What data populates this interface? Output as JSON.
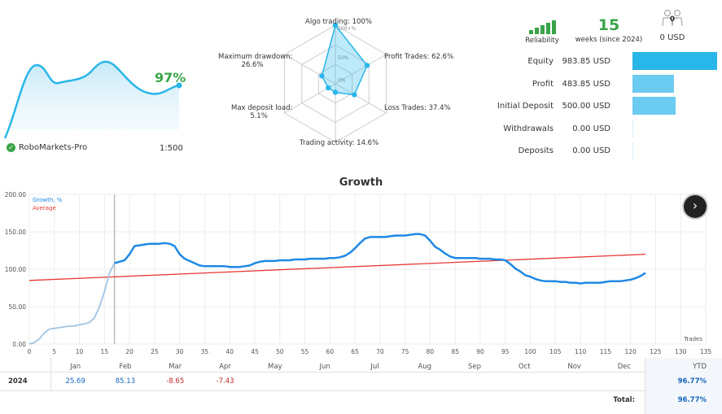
{
  "account": {
    "growth_pct": "97%",
    "broker": "RoboMarkets-Pro",
    "leverage": "1:500"
  },
  "radar": {
    "labels": {
      "algo": "Algo trading: 100%",
      "profit_trades": "Profit Trades: 62.6%",
      "loss_trades": "Loss Trades: 37.4%",
      "activity": "Trading activity: 14.6%",
      "deposit_load": "Max deposit load:",
      "deposit_load_val": "5.1%",
      "drawdown": "Maximum drawdown:",
      "drawdown_val": "26.6%"
    },
    "ring_labels": [
      "100+%",
      "50%",
      "0%"
    ],
    "values": [
      100,
      62.6,
      37.4,
      14.6,
      5.1,
      26.6
    ]
  },
  "stats": {
    "reliability_label": "Reliability",
    "weeks": "15",
    "weeks_label": "weeks (since 2024)",
    "subscribers_count": "0",
    "subscribers_value": "0 USD",
    "rows": [
      {
        "label": "Equity",
        "value": "983.85 USD",
        "fraction": 1.0
      },
      {
        "label": "Profit",
        "value": "483.85 USD",
        "fraction": 0.49
      },
      {
        "label": "Initial Deposit",
        "value": "500.00 USD",
        "fraction": 0.51
      },
      {
        "label": "Withdrawals",
        "value": "0.00 USD",
        "fraction": 0
      },
      {
        "label": "Deposits",
        "value": "0.00 USD",
        "fraction": 0
      }
    ],
    "colors": {
      "primary": "#29b6e8",
      "secondary": "#6ccbf0",
      "green": "#39a447"
    }
  },
  "chart_data": {
    "type": "line",
    "title": "Growth",
    "xlabel": "Trades",
    "xlim": [
      0,
      135
    ],
    "ylim": [
      0,
      200
    ],
    "x_ticks": [
      0,
      5,
      10,
      15,
      20,
      25,
      30,
      35,
      40,
      45,
      50,
      55,
      60,
      65,
      70,
      75,
      80,
      85,
      90,
      95,
      100,
      105,
      110,
      115,
      120,
      125,
      130,
      135
    ],
    "y_ticks": [
      "0.00",
      "50.00",
      "100.00",
      "150.00",
      "200.00"
    ],
    "months": [
      "Jan",
      "Feb",
      "Mar",
      "Apr",
      "May",
      "Jun",
      "Jul",
      "Aug",
      "Sep",
      "Oct",
      "Nov",
      "Dec"
    ],
    "legend": [
      "Growth, %",
      "Average"
    ],
    "series": [
      {
        "name": "Growth, %",
        "color": "#1e88e5",
        "x": [
          0,
          1,
          2,
          3,
          4,
          5,
          6,
          7,
          8,
          9,
          10,
          11,
          12,
          13,
          14,
          15,
          16,
          17,
          18,
          19,
          20,
          21,
          22,
          23,
          24,
          25,
          26,
          27,
          28,
          29,
          30,
          31,
          32,
          33,
          34,
          35,
          36,
          37,
          38,
          39,
          40,
          41,
          42,
          43,
          44,
          45,
          46,
          47,
          48,
          49,
          50,
          51,
          52,
          53,
          54,
          55,
          56,
          57,
          58,
          59,
          60,
          61,
          62,
          63,
          64,
          65,
          66,
          67,
          68,
          69,
          70,
          71,
          72,
          73,
          74,
          75,
          76,
          77,
          78,
          79,
          80,
          81,
          82,
          83,
          84,
          85,
          86,
          87,
          88,
          89,
          90,
          91,
          92,
          93,
          94,
          95,
          96,
          97,
          98,
          99,
          100,
          101,
          102,
          103,
          104,
          105,
          106,
          107,
          108,
          109,
          110,
          111,
          112,
          113,
          114,
          115,
          116,
          117,
          118,
          119,
          120,
          121,
          122,
          123
        ],
        "y": [
          0,
          2,
          7,
          15,
          20,
          21,
          22,
          23,
          24,
          24,
          26,
          27,
          29,
          35,
          50,
          70,
          95,
          108,
          110,
          112,
          120,
          131,
          132,
          133,
          134,
          134,
          134,
          135,
          134,
          131,
          120,
          114,
          111,
          108,
          105,
          104,
          104,
          104,
          104,
          104,
          103,
          103,
          103,
          104,
          105,
          108,
          110,
          111,
          111,
          111,
          112,
          112,
          112,
          113,
          113,
          113,
          114,
          114,
          114,
          114,
          115,
          115,
          116,
          118,
          122,
          128,
          135,
          141,
          143,
          143,
          143,
          143,
          144,
          145,
          145,
          145,
          146,
          147,
          147,
          145,
          138,
          130,
          126,
          121,
          117,
          115,
          115,
          115,
          115,
          115,
          114,
          114,
          114,
          113,
          113,
          112,
          107,
          101,
          97,
          92,
          90,
          87,
          85,
          84,
          84,
          84,
          83,
          83,
          82,
          82,
          81,
          82,
          82,
          82,
          82,
          83,
          84,
          84,
          84,
          85,
          86,
          88,
          91,
          95
        ]
      },
      {
        "name": "Average",
        "color": "#e53935",
        "x": [
          0,
          123
        ],
        "y": [
          85,
          120
        ]
      }
    ],
    "cursor_x": 17
  },
  "table": {
    "year": "2024",
    "values": {
      "Jan": "25.69",
      "Feb": "85.13",
      "Mar": "-8.65",
      "Apr": "-7.43"
    },
    "ytd_label": "YTD",
    "ytd": "96.77%",
    "total_label": "Total:",
    "total": "96.77%"
  }
}
